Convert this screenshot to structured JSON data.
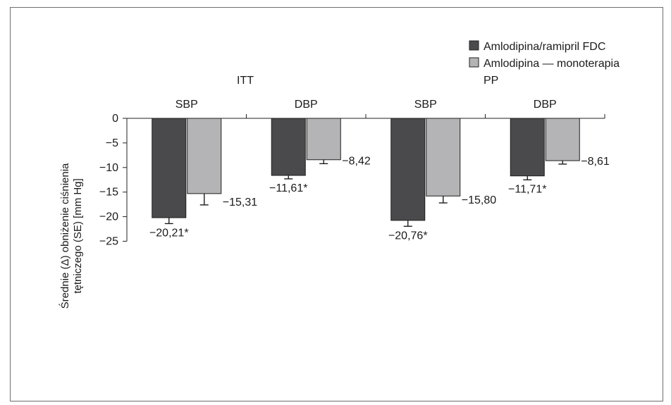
{
  "chart_data": {
    "type": "bar",
    "ylabel_line1": "Średnie (Δ) obniżenie ciśnienia",
    "ylabel_line2": "tętniczego (SE) [mm Hg]",
    "ylim": [
      -25,
      0
    ],
    "yticks": [
      0,
      -5,
      -10,
      -15,
      -20,
      -25
    ],
    "ytick_labels": [
      "0",
      "−5",
      "−10",
      "−15",
      "−20",
      "−25"
    ],
    "analysis_groups": [
      "ITT",
      "PP"
    ],
    "categories": [
      "SBP",
      "DBP",
      "SBP",
      "DBP"
    ],
    "series": [
      {
        "name": "Amlodipina/ramipril FDC",
        "color": "#4a4a4c",
        "values": [
          -20.21,
          -11.61,
          -20.76,
          -11.71
        ],
        "errors": [
          1.2,
          0.7,
          1.2,
          0.8
        ],
        "labels": [
          "−20,21*",
          "−11,61*",
          "−20,76*",
          "−11,71*"
        ]
      },
      {
        "name": "Amlodipina — monoterapia",
        "color": "#b4b4b6",
        "values": [
          -15.31,
          -8.42,
          -15.8,
          -8.61
        ],
        "errors": [
          2.3,
          0.8,
          1.4,
          0.7
        ],
        "labels": [
          "−15,31",
          "−8,42",
          "−15,80",
          "−8,61"
        ]
      }
    ],
    "grid": false,
    "legend": "top-right"
  }
}
